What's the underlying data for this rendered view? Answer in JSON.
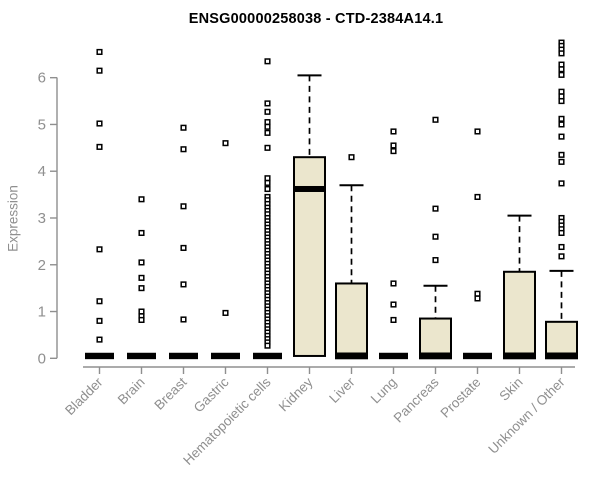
{
  "chart_data": {
    "type": "boxplot",
    "title": "ENSG00000258038 - CTD-2384A14.1",
    "ylabel": "Expression",
    "ylim": [
      0,
      6.9
    ],
    "yticks": [
      0,
      1,
      2,
      3,
      4,
      5,
      6
    ],
    "grid": false,
    "legend": false,
    "colors": {
      "box_fill": "#ebe6cd",
      "box_line": "#000000",
      "axis": "#8f8f8f",
      "title": "#000000",
      "background": "#ffffff"
    },
    "categories": [
      "Bladder",
      "Brain",
      "Breast",
      "Gastric",
      "Hematopoietic cells",
      "Kidney",
      "Liver",
      "Lung",
      "Pancreas",
      "Prostate",
      "Skin",
      "Unknown / Other"
    ],
    "series": [
      {
        "name": "Bladder",
        "q1": 0,
        "median": 0.05,
        "q3": 0.08,
        "whisker_low": 0,
        "whisker_high": 0.08,
        "outliers": [
          6.55,
          6.15,
          5.02,
          4.52,
          2.33,
          1.22,
          0.8,
          0.4
        ]
      },
      {
        "name": "Brain",
        "q1": 0,
        "median": 0.05,
        "q3": 0.08,
        "whisker_low": 0,
        "whisker_high": 0.08,
        "outliers": [
          3.4,
          2.68,
          2.05,
          1.72,
          1.5,
          1.0,
          0.9,
          0.82
        ]
      },
      {
        "name": "Breast",
        "q1": 0,
        "median": 0.05,
        "q3": 0.08,
        "whisker_low": 0,
        "whisker_high": 0.08,
        "outliers": [
          4.93,
          4.47,
          3.25,
          2.36,
          1.58,
          0.83
        ]
      },
      {
        "name": "Gastric",
        "q1": 0,
        "median": 0.05,
        "q3": 0.08,
        "whisker_low": 0,
        "whisker_high": 0.08,
        "outliers": [
          4.6,
          0.97
        ]
      },
      {
        "name": "Hematopoietic cells",
        "q1": 0,
        "median": 0.05,
        "q3": 0.08,
        "whisker_low": 0,
        "whisker_high": 0.08,
        "outliers": [
          6.35,
          5.45,
          5.27,
          5.05,
          4.95,
          4.82,
          4.5,
          3.85,
          3.75,
          3.62,
          3.45,
          3.38,
          3.3,
          3.22,
          3.15,
          3.08,
          3.0,
          2.93,
          2.86,
          2.79,
          2.72,
          2.65,
          2.58,
          2.51,
          2.44,
          2.37,
          2.3,
          2.23,
          2.16,
          2.09,
          2.02,
          1.95,
          1.88,
          1.81,
          1.74,
          1.67,
          1.6,
          1.53,
          1.46,
          1.39,
          1.32,
          1.25,
          1.18,
          1.11,
          1.04,
          0.97,
          0.9,
          0.83,
          0.76,
          0.69,
          0.62,
          0.55,
          0.48,
          0.41,
          0.34,
          0.27
        ]
      },
      {
        "name": "Kidney",
        "q1": 0.05,
        "median": 3.62,
        "q3": 4.3,
        "whisker_low": 0.05,
        "whisker_high": 6.05,
        "outliers": []
      },
      {
        "name": "Liver",
        "q1": 0,
        "median": 0.06,
        "q3": 1.6,
        "whisker_low": 0,
        "whisker_high": 3.7,
        "outliers": [
          4.3
        ]
      },
      {
        "name": "Lung",
        "q1": 0,
        "median": 0.05,
        "q3": 0.08,
        "whisker_low": 0,
        "whisker_high": 0.08,
        "outliers": [
          4.85,
          4.55,
          4.43,
          1.6,
          1.15,
          0.82
        ]
      },
      {
        "name": "Pancreas",
        "q1": 0,
        "median": 0.06,
        "q3": 0.85,
        "whisker_low": 0,
        "whisker_high": 1.55,
        "outliers": [
          5.1,
          3.2,
          2.6,
          2.1
        ]
      },
      {
        "name": "Prostate",
        "q1": 0,
        "median": 0.05,
        "q3": 0.08,
        "whisker_low": 0,
        "whisker_high": 0.08,
        "outliers": [
          4.85,
          3.45,
          1.38,
          1.28
        ]
      },
      {
        "name": "Skin",
        "q1": 0,
        "median": 0.06,
        "q3": 1.85,
        "whisker_low": 0,
        "whisker_high": 3.05,
        "outliers": []
      },
      {
        "name": "Unknown / Other",
        "q1": 0,
        "median": 0.06,
        "q3": 0.78,
        "whisker_low": 0,
        "whisker_high": 1.87,
        "outliers": [
          6.75,
          6.68,
          6.6,
          6.52,
          6.28,
          6.18,
          6.06,
          5.7,
          5.6,
          5.5,
          5.12,
          5.0,
          4.74,
          4.35,
          4.2,
          3.74,
          3.0,
          2.92,
          2.84,
          2.76,
          2.68,
          2.38,
          2.18
        ]
      }
    ]
  }
}
